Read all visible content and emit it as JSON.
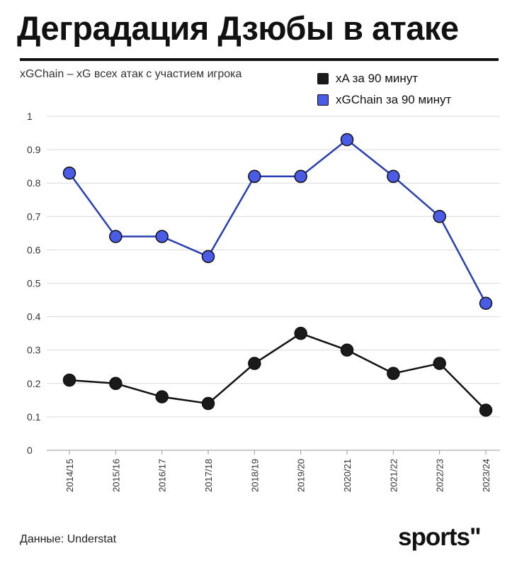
{
  "header": {
    "title": "Деградация Дзюбы в атаке",
    "subtitle": "xGChain – xG всех атак с участием игрока"
  },
  "legend": [
    {
      "label": "xA за 90 минут",
      "color": "#1a1a1a"
    },
    {
      "label": "xGChain за 90 минут",
      "color": "#4a5be6"
    }
  ],
  "footer": {
    "source": "Данные: Understat",
    "logo": "sports\""
  },
  "chart_data": {
    "type": "line",
    "categories": [
      "2014/15",
      "2015/16",
      "2016/17",
      "2017/18",
      "2018/19",
      "2019/20",
      "2020/21",
      "2021/22",
      "2022/23",
      "2023/24"
    ],
    "series": [
      {
        "name": "xA за 90 минут",
        "color": "#1a1a1a",
        "values": [
          0.21,
          0.2,
          0.16,
          0.14,
          0.26,
          0.35,
          0.3,
          0.23,
          0.26,
          0.12
        ]
      },
      {
        "name": "xGChain за 90 минут",
        "color": "#4a5be6",
        "values": [
          0.83,
          0.64,
          0.64,
          0.58,
          0.82,
          0.82,
          0.93,
          0.82,
          0.7,
          0.44
        ]
      }
    ],
    "yticks": [
      "0",
      "0.1",
      "0.2",
      "0.3",
      "0.4",
      "0.5",
      "0.6",
      "0.7",
      "0.8",
      "0.9",
      "1"
    ],
    "ylim": [
      0,
      1
    ],
    "grid": true,
    "title": "Деградация Дзюбы в атаке",
    "xlabel": "",
    "ylabel": ""
  }
}
